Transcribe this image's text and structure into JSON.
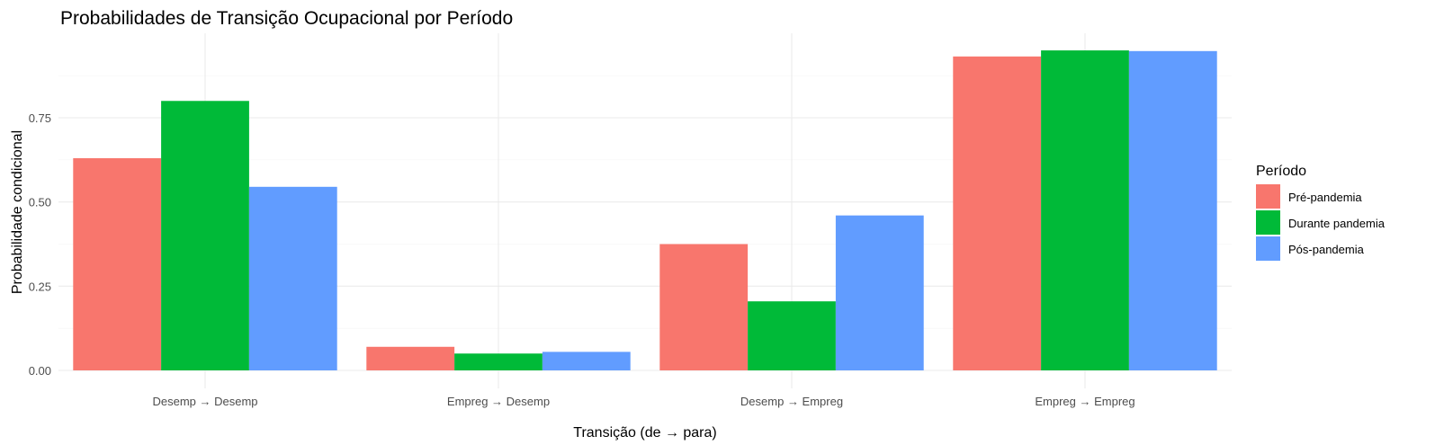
{
  "chart_data": {
    "type": "bar",
    "title": "Probabilidades de Transição Ocupacional por Período",
    "xlabel": "Transição (de → para)",
    "ylabel": "Probabilidade condicional",
    "categories": [
      "Desemp → Desemp",
      "Empreg → Desemp",
      "Desemp → Empreg",
      "Empreg → Empreg"
    ],
    "series": [
      {
        "name": "Pré-pandemia",
        "color": "#F8766D",
        "values": [
          0.63,
          0.07,
          0.375,
          0.932
        ]
      },
      {
        "name": "Durante pandemia",
        "color": "#00BA38",
        "values": [
          0.8,
          0.05,
          0.205,
          0.95
        ]
      },
      {
        "name": "Pós-pandemia",
        "color": "#619CFF",
        "values": [
          0.545,
          0.055,
          0.46,
          0.948
        ]
      }
    ],
    "ylim": [
      0,
      1.0
    ],
    "yticks": [
      0.0,
      0.25,
      0.5,
      0.75
    ],
    "ytick_labels": [
      "0.00",
      "0.25",
      "0.50",
      "0.75"
    ],
    "legend": {
      "title": "Período",
      "position": "right"
    },
    "grid": true
  }
}
